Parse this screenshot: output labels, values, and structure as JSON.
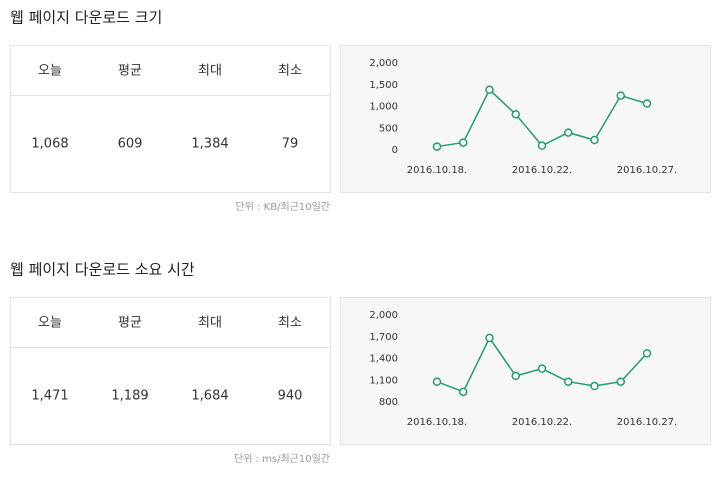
{
  "sections": [
    {
      "title": "웹 페이지 다운로드 크기",
      "table": {
        "headers": [
          "오늘",
          "평균",
          "최대",
          "최소"
        ],
        "rows": [
          [
            "1,068",
            "609",
            "1,384",
            "79"
          ]
        ]
      },
      "unit": "단위 : KB/최근10일간"
    },
    {
      "title": "웹 페이지 다운로드 소요 시간",
      "table": {
        "headers": [
          "오늘",
          "평균",
          "최대",
          "최소"
        ],
        "rows": [
          [
            "1,471",
            "1,189",
            "1,684",
            "940"
          ]
        ]
      },
      "unit": "단위 : ms/최근10일간"
    }
  ],
  "chart_data": [
    {
      "type": "line",
      "categories": [
        "2016.10.18.",
        null,
        null,
        null,
        "2016.10.22.",
        null,
        null,
        null,
        "2016.10.27."
      ],
      "values": [
        79,
        170,
        1384,
        820,
        100,
        400,
        230,
        1250,
        1068
      ],
      "color": "#1f9e6e",
      "ylim": [
        0,
        2000
      ],
      "yticks": [
        0,
        500,
        {
          "value": 1000,
          "label": "1,000"
        },
        {
          "value": 1500,
          "label": "1,500"
        },
        {
          "value": 2000,
          "label": "2,000"
        }
      ],
      "grid": false
    },
    {
      "type": "line",
      "categories": [
        "2016.10.18.",
        null,
        null,
        null,
        "2016.10.22.",
        null,
        null,
        null,
        "2016.10.27."
      ],
      "values": [
        1080,
        940,
        1684,
        1160,
        1260,
        1080,
        1020,
        1080,
        1471
      ],
      "color": "#1f9e6e",
      "ylim": [
        800,
        2000
      ],
      "yticks": [
        800,
        {
          "value": 1100,
          "label": "1,100"
        },
        {
          "value": 1400,
          "label": "1,400"
        },
        {
          "value": 1700,
          "label": "1,700"
        },
        {
          "value": 2000,
          "label": "2,000"
        }
      ],
      "grid": false
    }
  ]
}
